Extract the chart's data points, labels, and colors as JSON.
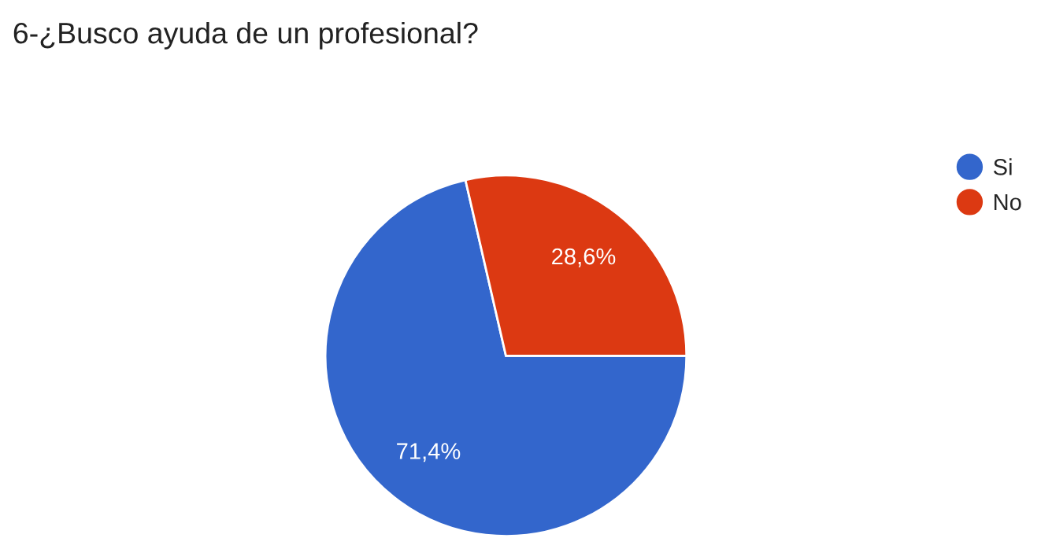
{
  "chart_data": {
    "type": "pie",
    "title": "6-¿Busco ayuda de un profesional?",
    "categories": [
      "Si",
      "No"
    ],
    "values": [
      71.4,
      28.6
    ],
    "colors": [
      "#3366cc",
      "#dc3912"
    ],
    "value_labels": [
      "71,4%",
      "28,6%"
    ],
    "legend": "right"
  }
}
